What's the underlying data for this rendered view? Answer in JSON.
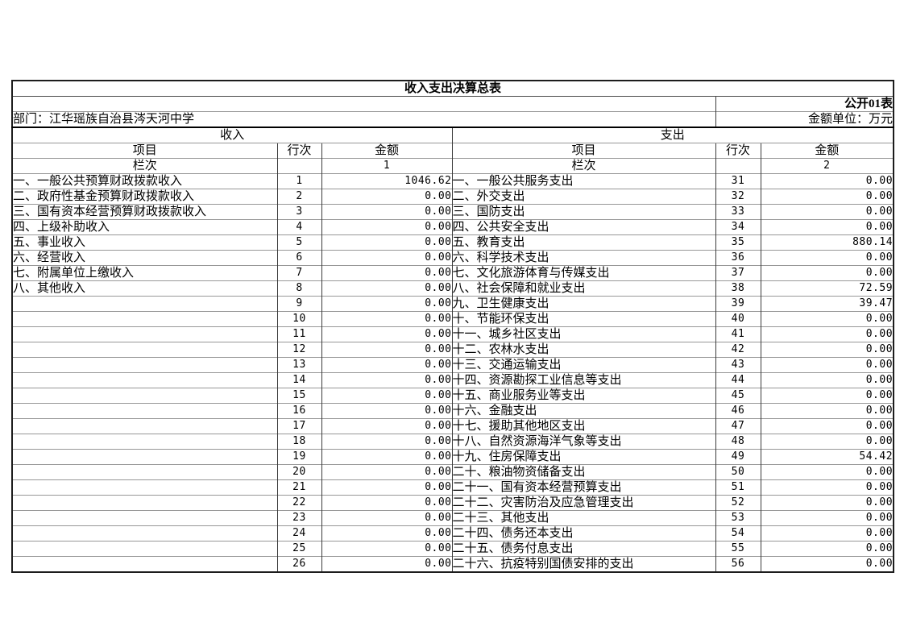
{
  "page": {
    "title": "收入支出决算总表",
    "table_code": "公开01表",
    "department_label": "部门：江华瑶族自治县涔天河中学",
    "unit_label": "金额单位：万元"
  },
  "headers": {
    "income_section": "收入",
    "expense_section": "支出",
    "item": "项目",
    "line_no": "行次",
    "amount": "金额",
    "column_label": "栏次",
    "income_col_no": "1",
    "expense_col_no": "2"
  },
  "income_rows": [
    {
      "label": "一、一般公共预算财政拨款收入",
      "line": "1",
      "amount": "1046.62"
    },
    {
      "label": "二、政府性基金预算财政拨款收入",
      "line": "2",
      "amount": "0.00"
    },
    {
      "label": "三、国有资本经营预算财政拨款收入",
      "line": "3",
      "amount": "0.00"
    },
    {
      "label": "四、上级补助收入",
      "line": "4",
      "amount": "0.00"
    },
    {
      "label": "五、事业收入",
      "line": "5",
      "amount": "0.00"
    },
    {
      "label": "六、经营收入",
      "line": "6",
      "amount": "0.00"
    },
    {
      "label": "七、附属单位上缴收入",
      "line": "7",
      "amount": "0.00"
    },
    {
      "label": "八、其他收入",
      "line": "8",
      "amount": "0.00"
    },
    {
      "label": "",
      "line": "9",
      "amount": "0.00"
    },
    {
      "label": "",
      "line": "10",
      "amount": "0.00"
    },
    {
      "label": "",
      "line": "11",
      "amount": "0.00"
    },
    {
      "label": "",
      "line": "12",
      "amount": "0.00"
    },
    {
      "label": "",
      "line": "13",
      "amount": "0.00"
    },
    {
      "label": "",
      "line": "14",
      "amount": "0.00"
    },
    {
      "label": "",
      "line": "15",
      "amount": "0.00"
    },
    {
      "label": "",
      "line": "16",
      "amount": "0.00"
    },
    {
      "label": "",
      "line": "17",
      "amount": "0.00"
    },
    {
      "label": "",
      "line": "18",
      "amount": "0.00"
    },
    {
      "label": "",
      "line": "19",
      "amount": "0.00"
    },
    {
      "label": "",
      "line": "20",
      "amount": "0.00"
    },
    {
      "label": "",
      "line": "21",
      "amount": "0.00"
    },
    {
      "label": "",
      "line": "22",
      "amount": "0.00"
    },
    {
      "label": "",
      "line": "23",
      "amount": "0.00"
    },
    {
      "label": "",
      "line": "24",
      "amount": "0.00"
    },
    {
      "label": "",
      "line": "25",
      "amount": "0.00"
    },
    {
      "label": "",
      "line": "26",
      "amount": "0.00"
    }
  ],
  "expense_rows": [
    {
      "label": "一、一般公共服务支出",
      "line": "31",
      "amount": "0.00"
    },
    {
      "label": "二、外交支出",
      "line": "32",
      "amount": "0.00"
    },
    {
      "label": "三、国防支出",
      "line": "33",
      "amount": "0.00"
    },
    {
      "label": "四、公共安全支出",
      "line": "34",
      "amount": "0.00"
    },
    {
      "label": "五、教育支出",
      "line": "35",
      "amount": "880.14"
    },
    {
      "label": "六、科学技术支出",
      "line": "36",
      "amount": "0.00"
    },
    {
      "label": "七、文化旅游体育与传媒支出",
      "line": "37",
      "amount": "0.00"
    },
    {
      "label": "八、社会保障和就业支出",
      "line": "38",
      "amount": "72.59"
    },
    {
      "label": "九、卫生健康支出",
      "line": "39",
      "amount": "39.47"
    },
    {
      "label": "十、节能环保支出",
      "line": "40",
      "amount": "0.00"
    },
    {
      "label": "十一、城乡社区支出",
      "line": "41",
      "amount": "0.00"
    },
    {
      "label": "十二、农林水支出",
      "line": "42",
      "amount": "0.00"
    },
    {
      "label": "十三、交通运输支出",
      "line": "43",
      "amount": "0.00"
    },
    {
      "label": "十四、资源勘探工业信息等支出",
      "line": "44",
      "amount": "0.00"
    },
    {
      "label": "十五、商业服务业等支出",
      "line": "45",
      "amount": "0.00"
    },
    {
      "label": "十六、金融支出",
      "line": "46",
      "amount": "0.00"
    },
    {
      "label": "十七、援助其他地区支出",
      "line": "47",
      "amount": "0.00"
    },
    {
      "label": "十八、自然资源海洋气象等支出",
      "line": "48",
      "amount": "0.00"
    },
    {
      "label": "十九、住房保障支出",
      "line": "49",
      "amount": "54.42"
    },
    {
      "label": "二十、粮油物资储备支出",
      "line": "50",
      "amount": "0.00"
    },
    {
      "label": "二十一、国有资本经营预算支出",
      "line": "51",
      "amount": "0.00"
    },
    {
      "label": "二十二、灾害防治及应急管理支出",
      "line": "52",
      "amount": "0.00"
    },
    {
      "label": "二十三、其他支出",
      "line": "53",
      "amount": "0.00"
    },
    {
      "label": "二十四、债务还本支出",
      "line": "54",
      "amount": "0.00"
    },
    {
      "label": "二十五、债务付息支出",
      "line": "55",
      "amount": "0.00"
    },
    {
      "label": "二十六、抗疫特别国债安排的支出",
      "line": "56",
      "amount": "0.00"
    }
  ]
}
